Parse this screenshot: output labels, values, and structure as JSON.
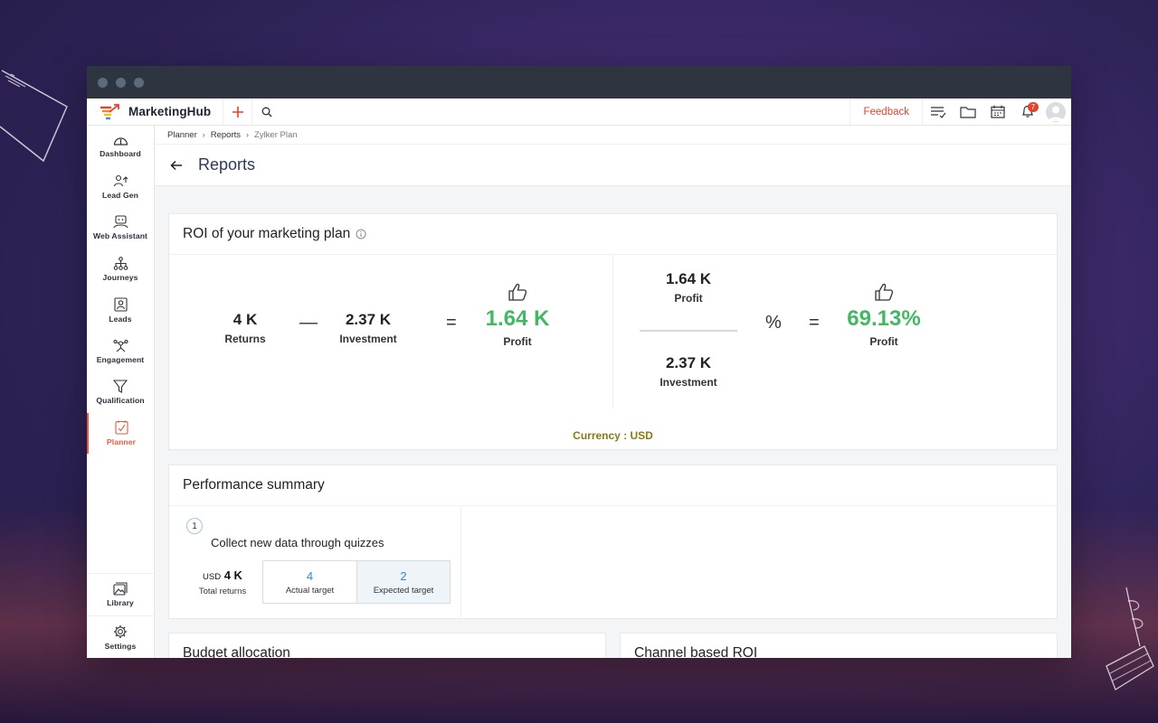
{
  "app": {
    "name": "MarketingHub"
  },
  "topbar": {
    "feedback_label": "Feedback",
    "notification_count": "7",
    "icons": [
      "plus-icon",
      "search-icon",
      "task-list-icon",
      "folder-icon",
      "calendar-icon",
      "bell-icon",
      "avatar"
    ]
  },
  "sidebar": {
    "items": [
      {
        "label": "Dashboard",
        "icon": "dashboard-icon"
      },
      {
        "label": "Lead Gen",
        "icon": "lead-gen-icon"
      },
      {
        "label": "Web Assistant",
        "icon": "web-assistant-icon"
      },
      {
        "label": "Journeys",
        "icon": "journeys-icon"
      },
      {
        "label": "Leads",
        "icon": "leads-icon"
      },
      {
        "label": "Engagement",
        "icon": "engagement-icon"
      },
      {
        "label": "Qualification",
        "icon": "funnel-icon"
      },
      {
        "label": "Planner",
        "icon": "planner-icon",
        "active": true
      }
    ],
    "bottom_items": [
      {
        "label": "Library",
        "icon": "library-icon"
      },
      {
        "label": "Settings",
        "icon": "gear-icon"
      }
    ]
  },
  "breadcrumb": [
    "Planner",
    "Reports",
    "Zylker Plan"
  ],
  "page": {
    "title": "Reports"
  },
  "roi": {
    "title": "ROI of your marketing plan",
    "returns_value": "4 K",
    "returns_label": "Returns",
    "minus": "—",
    "investment_value": "2.37 K",
    "investment_label": "Investment",
    "equals": "=",
    "profit_value": "1.64 K",
    "profit_label": "Profit",
    "frac_top_value": "1.64 K",
    "frac_top_label": "Profit",
    "frac_bottom_value": "2.37 K",
    "frac_bottom_label": "Investment",
    "percent_sign": "%",
    "percent_value": "69.13%",
    "percent_label": "Profit",
    "currency": "Currency  : USD",
    "positive_color": "#43b862"
  },
  "performance": {
    "title": "Performance summary",
    "goal_number": "1",
    "goal_title": "Collect new data through quizzes",
    "total_currency": "USD",
    "total_value": "4 K",
    "total_label": "Total returns",
    "actual_value": "4",
    "actual_label": "Actual target",
    "expected_value": "2",
    "expected_label": "Expected target"
  },
  "budget": {
    "title": "Budget allocation"
  },
  "channel": {
    "title": "Channel based ROI"
  }
}
